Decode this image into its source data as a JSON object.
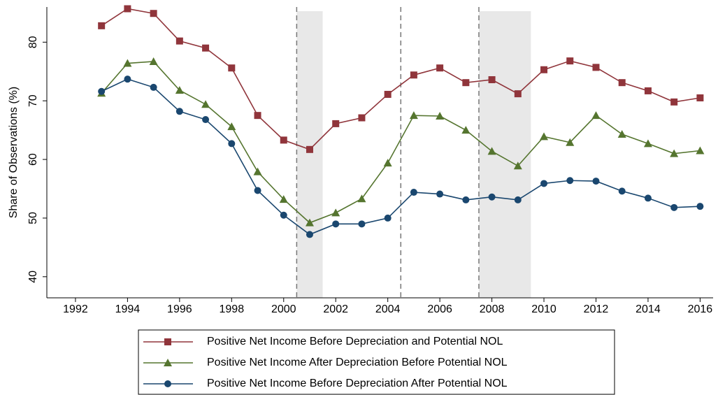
{
  "chart_data": {
    "type": "line",
    "y_label": "Share of Observations (%)",
    "x": [
      1993,
      1994,
      1995,
      1996,
      1997,
      1998,
      1999,
      2000,
      2001,
      2002,
      2003,
      2004,
      2005,
      2006,
      2007,
      2008,
      2009,
      2010,
      2011,
      2012,
      2013,
      2014,
      2015,
      2016
    ],
    "series": [
      {
        "name": "Positive Net Income Before Depreciation and Potential NOL",
        "color": "#90353b",
        "marker": "square",
        "values": [
          82.8,
          85.7,
          84.9,
          80.2,
          79.0,
          75.6,
          67.5,
          63.3,
          61.7,
          66.1,
          67.1,
          71.1,
          74.4,
          75.6,
          73.1,
          73.6,
          71.2,
          75.3,
          76.8,
          75.7,
          73.1,
          71.7,
          69.8,
          70.5
        ]
      },
      {
        "name": "Positive Net Income After Depreciation Before Potential NOL",
        "color": "#55752f",
        "marker": "triangle",
        "values": [
          71.3,
          76.4,
          76.7,
          71.8,
          69.4,
          65.6,
          57.9,
          53.2,
          49.2,
          50.9,
          53.3,
          59.4,
          67.5,
          67.4,
          65.0,
          61.4,
          58.9,
          63.9,
          62.9,
          67.5,
          64.3,
          62.7,
          61.0,
          61.5
        ]
      },
      {
        "name": "Positive Net Income Before Depreciation After Potential NOL",
        "color": "#1a476f",
        "marker": "circle",
        "values": [
          71.6,
          73.7,
          72.3,
          68.2,
          66.8,
          62.7,
          54.7,
          50.5,
          47.2,
          49.0,
          49.0,
          50.0,
          54.4,
          54.1,
          53.1,
          53.6,
          53.1,
          55.9,
          56.4,
          56.3,
          54.6,
          53.4,
          51.8,
          52.0
        ]
      }
    ],
    "shaded_regions": [
      [
        2000.5,
        2001.5
      ],
      [
        2007.5,
        2009.5
      ]
    ],
    "vlines": [
      2000.5,
      2004.5,
      2007.5
    ],
    "xlim": [
      1990.9,
      2016.5
    ],
    "xticks": [
      1992,
      1994,
      1996,
      1998,
      2000,
      2002,
      2004,
      2006,
      2008,
      2010,
      2012,
      2014,
      2016
    ],
    "ylim": [
      36.4,
      86
    ],
    "yticks": [
      40,
      50,
      60,
      70,
      80
    ],
    "legend": "bottom"
  }
}
